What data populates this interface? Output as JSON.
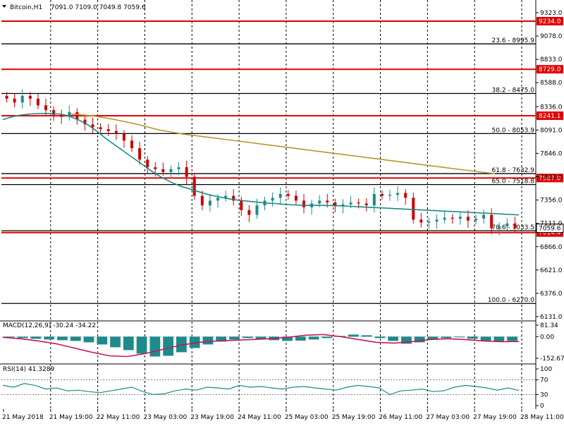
{
  "header": {
    "symbol_label": "Bitcoin,H1",
    "ohlc_label": "7091.0 7109.0 7049.8 7059.6"
  },
  "colors": {
    "background": "#ffffff",
    "grid": "#000000",
    "bull_candle": "#1f8a8a",
    "bear_candle": "#cc0000",
    "ma_fast": "#1a8a86",
    "ma_slow": "#b8952a",
    "resistance": "#e00000",
    "fibo": "#000000",
    "price_tag_bg": "#e00000",
    "macd_hist": "#1f8a8a",
    "macd_signal": "#c2185b",
    "rsi_line": "#1a8a86"
  },
  "chart_data": [
    {
      "type": "candlestick",
      "title": "Bitcoin,H1",
      "ylim": [
        6131.0,
        9323.0
      ],
      "y_ticks": [
        9323.0,
        9078.0,
        8833.0,
        8588.0,
        8336.0,
        8091.0,
        7846.0,
        7601.0,
        7356.0,
        7111.0,
        6866.0,
        6621.0,
        6376.0,
        6131.0
      ],
      "x_ticks": [
        "21 May 2018",
        "21 May 19:00",
        "22 May 11:00",
        "23 May 03:00",
        "23 May 19:00",
        "24 May 11:00",
        "25 May 03:00",
        "25 May 19:00",
        "26 May 11:00",
        "27 May 03:00",
        "27 May 19:00",
        "28 May 11:00"
      ],
      "last_price": "7059.6",
      "horizontal_levels": [
        {
          "label": "9234.0",
          "value": 9234.0,
          "kind": "resistance"
        },
        {
          "label": "8729.0",
          "value": 8729.0,
          "kind": "resistance"
        },
        {
          "label": "8241.1",
          "value": 8241.1,
          "kind": "resistance"
        },
        {
          "label": "7587.0",
          "value": 7587.0,
          "kind": "resistance"
        },
        {
          "label": "7014.4",
          "value": 7014.4,
          "kind": "resistance"
        }
      ],
      "fibonacci": [
        {
          "label": "23.6 - 8995.9",
          "value": 8995.9
        },
        {
          "label": "38.2 - 8475.0",
          "value": 8475.0
        },
        {
          "label": "50.0 - 8053.9",
          "value": 8053.9
        },
        {
          "label": "61.8 - 7632.9",
          "value": 7632.9
        },
        {
          "label": "65.0 - 7518.8",
          "value": 7518.8
        },
        {
          "label": "78.6 - 7033.5",
          "value": 7033.5
        },
        {
          "label": "100.0 - 6270.0",
          "value": 6270.0
        }
      ],
      "price_series": [
        8420,
        8380,
        8450,
        8420,
        8350,
        8300,
        8250,
        8230,
        8280,
        8200,
        8150,
        8120,
        8100,
        8080,
        8050,
        7980,
        7900,
        7780,
        7700,
        7680,
        7650,
        7680,
        7700,
        7600,
        7400,
        7300,
        7350,
        7380,
        7400,
        7350,
        7250,
        7200,
        7300,
        7350,
        7380,
        7420,
        7400,
        7350,
        7280,
        7320,
        7350,
        7330,
        7290,
        7310,
        7330,
        7320,
        7300,
        7420,
        7400,
        7410,
        7430,
        7380,
        7150,
        7120,
        7130,
        7150,
        7170,
        7160,
        7180,
        7140,
        7160,
        7200,
        7060,
        7080,
        7110,
        7060
      ],
      "ma_fast_series": [
        8200,
        8230,
        8250,
        8260,
        8265,
        8265,
        8260,
        8240,
        8200,
        8150,
        8080,
        8000,
        7930,
        7860,
        7790,
        7720,
        7650,
        7590,
        7540,
        7500,
        7470,
        7440,
        7410,
        7390,
        7370,
        7355,
        7345,
        7335,
        7325,
        7320,
        7310,
        7305,
        7300,
        7300,
        7300,
        7298,
        7295,
        7290,
        7285,
        7280,
        7275,
        7270,
        7265,
        7260,
        7255,
        7250,
        7245,
        7240,
        7235,
        7230,
        7225,
        7220,
        7215,
        7210,
        7205,
        7200
      ],
      "ma_slow_series": [
        8260,
        8240,
        8200,
        8150,
        8090,
        8050,
        8020,
        7990,
        7960,
        7930,
        7900,
        7870,
        7840,
        7810,
        7780,
        7750,
        7720,
        7690,
        7660,
        7632
      ]
    },
    {
      "type": "bar",
      "title": "MACD(12,26,9) -30.24 -34.22",
      "ylim": [
        -152.67,
        81.34
      ],
      "y_ticks": [
        81.34,
        0.0,
        -152.67
      ],
      "main": -30.24,
      "signal": -34.22,
      "histogram": [
        -5,
        -10,
        -15,
        -20,
        -25,
        -30,
        -40,
        -55,
        -75,
        -95,
        -120,
        -140,
        -135,
        -110,
        -80,
        -55,
        -35,
        -20,
        -10,
        -15,
        -25,
        -30,
        -28,
        -20,
        -10,
        5,
        15,
        10,
        -10,
        -30,
        -50,
        -40,
        -20,
        -10,
        -5,
        -15,
        -30,
        -35,
        -30
      ],
      "signal_series": [
        -5,
        -15,
        -30,
        -50,
        -80,
        -110,
        -135,
        -140,
        -120,
        -90,
        -60,
        -40,
        -30,
        -25,
        -20,
        -15,
        -5,
        10,
        15,
        0,
        -20,
        -40,
        -45,
        -35,
        -20,
        -15,
        -20,
        -30,
        -35,
        -34
      ]
    },
    {
      "type": "line",
      "title": "RSI(14) 41.3289",
      "ylim": [
        0,
        100
      ],
      "y_ticks": [
        100,
        70,
        30,
        0
      ],
      "last": 41.3289,
      "values": [
        55,
        50,
        60,
        55,
        45,
        48,
        40,
        42,
        38,
        35,
        40,
        45,
        50,
        38,
        30,
        32,
        40,
        45,
        42,
        50,
        48,
        45,
        55,
        50,
        52,
        48,
        45,
        50,
        52,
        48,
        45,
        42,
        50,
        55,
        52,
        48,
        30,
        40,
        42,
        45,
        38,
        40,
        50,
        55,
        52,
        48,
        42,
        48,
        41
      ]
    }
  ]
}
